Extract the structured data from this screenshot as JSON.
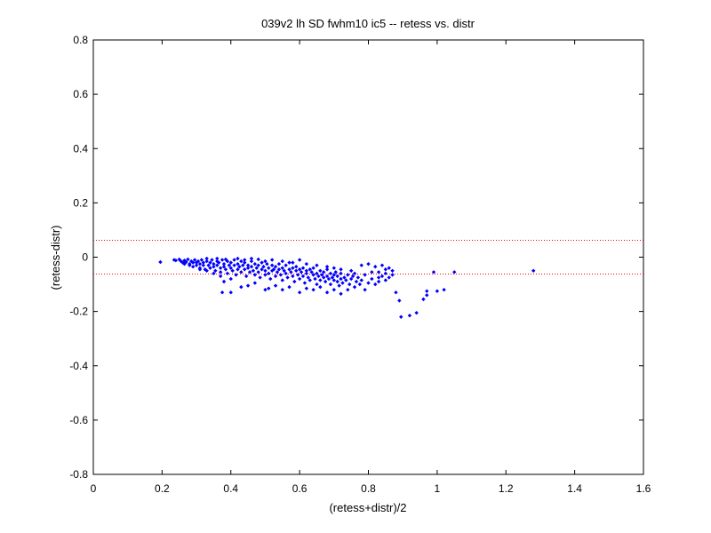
{
  "chart_data": {
    "type": "scatter",
    "title": "039v2 lh SD fwhm10 ic5 -- retess vs. distr",
    "xlabel": "(retess+distr)/2",
    "ylabel": "(retess-distr)",
    "xlim": [
      0,
      1.6
    ],
    "ylim": [
      -0.8,
      0.8
    ],
    "xticks": [
      0,
      0.2,
      0.4,
      0.6,
      0.8,
      1,
      1.2,
      1.4,
      1.6
    ],
    "xtick_labels": [
      "0",
      "0.2",
      "0.4",
      "0.6",
      "0.8",
      "1",
      "1.2",
      "1.4",
      "1.6"
    ],
    "yticks": [
      -0.8,
      -0.6,
      -0.4,
      -0.2,
      0,
      0.2,
      0.4,
      0.6,
      0.8
    ],
    "ytick_labels": [
      "-0.8",
      "-0.6",
      "-0.4",
      "-0.2",
      "0",
      "0.2",
      "0.4",
      "0.6",
      "0.8"
    ],
    "grid": false,
    "reference_lines": [
      {
        "y": 0.062,
        "style": "dotted",
        "color": "#ff0000"
      },
      {
        "y": -0.062,
        "style": "dotted",
        "color": "#ff0000"
      }
    ],
    "marker_color": "#0000ff",
    "series": [
      {
        "points": [
          [
            0.195,
            -0.018
          ],
          [
            0.235,
            -0.01
          ],
          [
            0.24,
            -0.012
          ],
          [
            0.25,
            -0.008
          ],
          [
            0.255,
            -0.015
          ],
          [
            0.26,
            -0.02
          ],
          [
            0.265,
            -0.012
          ],
          [
            0.27,
            -0.018
          ],
          [
            0.275,
            -0.008
          ],
          [
            0.28,
            -0.025
          ],
          [
            0.285,
            -0.015
          ],
          [
            0.29,
            -0.02
          ],
          [
            0.29,
            -0.035
          ],
          [
            0.295,
            -0.01
          ],
          [
            0.3,
            -0.02
          ],
          [
            0.3,
            -0.03
          ],
          [
            0.305,
            -0.015
          ],
          [
            0.31,
            -0.025
          ],
          [
            0.31,
            -0.04
          ],
          [
            0.315,
            -0.01
          ],
          [
            0.32,
            -0.02
          ],
          [
            0.32,
            -0.03
          ],
          [
            0.325,
            -0.045
          ],
          [
            0.33,
            -0.015
          ],
          [
            0.33,
            -0.005
          ],
          [
            0.335,
            -0.03
          ],
          [
            0.34,
            -0.02
          ],
          [
            0.34,
            -0.04
          ],
          [
            0.345,
            -0.01
          ],
          [
            0.35,
            -0.025
          ],
          [
            0.35,
            -0.035
          ],
          [
            0.355,
            -0.05
          ],
          [
            0.36,
            -0.015
          ],
          [
            0.36,
            -0.03
          ],
          [
            0.365,
            -0.02
          ],
          [
            0.37,
            -0.04
          ],
          [
            0.37,
            -0.055
          ],
          [
            0.375,
            -0.01
          ],
          [
            0.38,
            -0.025
          ],
          [
            0.38,
            -0.035
          ],
          [
            0.385,
            -0.045
          ],
          [
            0.39,
            -0.015
          ],
          [
            0.39,
            -0.06
          ],
          [
            0.395,
            -0.03
          ],
          [
            0.4,
            -0.02
          ],
          [
            0.4,
            -0.04
          ],
          [
            0.405,
            -0.05
          ],
          [
            0.41,
            -0.01
          ],
          [
            0.41,
            -0.03
          ],
          [
            0.415,
            -0.065
          ],
          [
            0.42,
            -0.025
          ],
          [
            0.42,
            -0.045
          ],
          [
            0.425,
            -0.035
          ],
          [
            0.43,
            -0.015
          ],
          [
            0.43,
            -0.055
          ],
          [
            0.435,
            -0.03
          ],
          [
            0.44,
            -0.02
          ],
          [
            0.44,
            -0.045
          ],
          [
            0.445,
            -0.07
          ],
          [
            0.45,
            -0.03
          ],
          [
            0.45,
            -0.04
          ],
          [
            0.455,
            -0.055
          ],
          [
            0.46,
            -0.015
          ],
          [
            0.46,
            -0.035
          ],
          [
            0.465,
            -0.05
          ],
          [
            0.47,
            -0.025
          ],
          [
            0.47,
            -0.065
          ],
          [
            0.475,
            -0.04
          ],
          [
            0.48,
            -0.03
          ],
          [
            0.48,
            -0.055
          ],
          [
            0.485,
            -0.075
          ],
          [
            0.49,
            -0.02
          ],
          [
            0.49,
            -0.045
          ],
          [
            0.495,
            -0.035
          ],
          [
            0.5,
            -0.05
          ],
          [
            0.5,
            -0.065
          ],
          [
            0.505,
            -0.025
          ],
          [
            0.51,
            -0.04
          ],
          [
            0.51,
            -0.06
          ],
          [
            0.515,
            -0.08
          ],
          [
            0.52,
            -0.03
          ],
          [
            0.52,
            -0.05
          ],
          [
            0.525,
            -0.045
          ],
          [
            0.53,
            -0.035
          ],
          [
            0.53,
            -0.07
          ],
          [
            0.535,
            -0.055
          ],
          [
            0.54,
            -0.025
          ],
          [
            0.54,
            -0.045
          ],
          [
            0.545,
            -0.065
          ],
          [
            0.55,
            -0.04
          ],
          [
            0.55,
            -0.085
          ],
          [
            0.555,
            -0.05
          ],
          [
            0.56,
            -0.03
          ],
          [
            0.56,
            -0.06
          ],
          [
            0.565,
            -0.075
          ],
          [
            0.57,
            -0.045
          ],
          [
            0.57,
            -0.02
          ],
          [
            0.575,
            -0.055
          ],
          [
            0.58,
            -0.04
          ],
          [
            0.58,
            -0.07
          ],
          [
            0.585,
            -0.09
          ],
          [
            0.59,
            -0.05
          ],
          [
            0.59,
            -0.035
          ],
          [
            0.595,
            -0.065
          ],
          [
            0.6,
            -0.045
          ],
          [
            0.6,
            -0.08
          ],
          [
            0.605,
            -0.055
          ],
          [
            0.61,
            -0.04
          ],
          [
            0.61,
            -0.07
          ],
          [
            0.615,
            -0.095
          ],
          [
            0.62,
            -0.05
          ],
          [
            0.62,
            -0.06
          ],
          [
            0.625,
            -0.075
          ],
          [
            0.63,
            -0.045
          ],
          [
            0.63,
            -0.085
          ],
          [
            0.635,
            -0.055
          ],
          [
            0.64,
            -0.065
          ],
          [
            0.64,
            -0.04
          ],
          [
            0.645,
            -0.08
          ],
          [
            0.65,
            -0.06
          ],
          [
            0.65,
            -0.1
          ],
          [
            0.655,
            -0.07
          ],
          [
            0.66,
            -0.05
          ],
          [
            0.66,
            -0.085
          ],
          [
            0.665,
            -0.065
          ],
          [
            0.67,
            -0.075
          ],
          [
            0.67,
            -0.055
          ],
          [
            0.675,
            -0.09
          ],
          [
            0.68,
            -0.07
          ],
          [
            0.68,
            -0.045
          ],
          [
            0.685,
            -0.08
          ],
          [
            0.69,
            -0.06
          ],
          [
            0.69,
            -0.1
          ],
          [
            0.695,
            -0.075
          ],
          [
            0.7,
            -0.065
          ],
          [
            0.7,
            -0.085
          ],
          [
            0.705,
            -0.055
          ],
          [
            0.71,
            -0.09
          ],
          [
            0.71,
            -0.07
          ],
          [
            0.715,
            -0.105
          ],
          [
            0.72,
            -0.08
          ],
          [
            0.72,
            -0.06
          ],
          [
            0.725,
            -0.095
          ],
          [
            0.73,
            -0.075
          ],
          [
            0.735,
            -0.085
          ],
          [
            0.74,
            -0.065
          ],
          [
            0.745,
            -0.1
          ],
          [
            0.75,
            -0.08
          ],
          [
            0.755,
            -0.07
          ],
          [
            0.76,
            -0.11
          ],
          [
            0.765,
            -0.09
          ],
          [
            0.77,
            -0.075
          ],
          [
            0.775,
            -0.1
          ],
          [
            0.78,
            -0.085
          ],
          [
            0.79,
            -0.12
          ],
          [
            0.8,
            -0.095
          ],
          [
            0.81,
            -0.08
          ],
          [
            0.82,
            -0.1
          ],
          [
            0.83,
            -0.09
          ],
          [
            0.84,
            -0.07
          ],
          [
            0.85,
            -0.06
          ],
          [
            0.86,
            -0.075
          ],
          [
            0.78,
            -0.03
          ],
          [
            0.8,
            -0.025
          ],
          [
            0.82,
            -0.035
          ],
          [
            0.84,
            -0.03
          ],
          [
            0.86,
            -0.04
          ],
          [
            0.85,
            -0.045
          ],
          [
            0.83,
            -0.055
          ],
          [
            0.87,
            -0.065
          ],
          [
            0.88,
            -0.13
          ],
          [
            0.89,
            -0.16
          ],
          [
            0.895,
            -0.22
          ],
          [
            0.92,
            -0.215
          ],
          [
            0.94,
            -0.205
          ],
          [
            0.96,
            -0.155
          ],
          [
            0.97,
            -0.14
          ],
          [
            0.97,
            -0.125
          ],
          [
            0.99,
            -0.055
          ],
          [
            1.0,
            -0.125
          ],
          [
            1.02,
            -0.12
          ],
          [
            1.05,
            -0.055
          ],
          [
            1.28,
            -0.05
          ],
          [
            0.37,
            -0.07
          ],
          [
            0.38,
            -0.09
          ],
          [
            0.4,
            -0.08
          ],
          [
            0.375,
            -0.13
          ],
          [
            0.4,
            -0.13
          ],
          [
            0.43,
            -0.11
          ],
          [
            0.45,
            -0.105
          ],
          [
            0.47,
            -0.095
          ],
          [
            0.5,
            -0.12
          ],
          [
            0.51,
            -0.115
          ],
          [
            0.53,
            -0.105
          ],
          [
            0.55,
            -0.12
          ],
          [
            0.57,
            -0.11
          ],
          [
            0.6,
            -0.13
          ],
          [
            0.62,
            -0.115
          ],
          [
            0.64,
            -0.12
          ],
          [
            0.66,
            -0.11
          ],
          [
            0.68,
            -0.13
          ],
          [
            0.7,
            -0.12
          ],
          [
            0.72,
            -0.135
          ],
          [
            0.74,
            -0.12
          ],
          [
            0.35,
            -0.06
          ],
          [
            0.33,
            -0.05
          ],
          [
            0.31,
            -0.045
          ],
          [
            0.28,
            -0.03
          ],
          [
            0.265,
            -0.025
          ],
          [
            0.5,
            -0.015
          ],
          [
            0.52,
            -0.01
          ],
          [
            0.55,
            -0.015
          ],
          [
            0.58,
            -0.02
          ],
          [
            0.6,
            -0.01
          ],
          [
            0.62,
            -0.025
          ],
          [
            0.65,
            -0.03
          ],
          [
            0.68,
            -0.035
          ],
          [
            0.7,
            -0.04
          ],
          [
            0.72,
            -0.045
          ],
          [
            0.75,
            -0.05
          ],
          [
            0.76,
            -0.06
          ],
          [
            0.79,
            -0.065
          ],
          [
            0.81,
            -0.055
          ],
          [
            0.83,
            -0.075
          ],
          [
            0.85,
            -0.085
          ],
          [
            0.87,
            -0.05
          ],
          [
            0.44,
            -0.01
          ],
          [
            0.46,
            -0.005
          ],
          [
            0.48,
            -0.008
          ],
          [
            0.42,
            -0.005
          ],
          [
            0.36,
            -0.005
          ],
          [
            0.385,
            -0.008
          ]
        ]
      }
    ]
  }
}
